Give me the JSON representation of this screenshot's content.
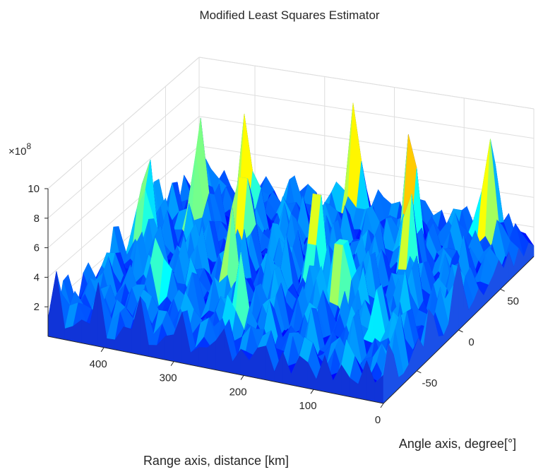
{
  "chart_data": {
    "type": "surface3d",
    "title": "Modified Least Squares Estimator",
    "xlabel": "Range axis, distance [km]",
    "ylabel": "Angle axis, degree[°]",
    "zlabel": "",
    "x_ticks": [
      400,
      300,
      200,
      100,
      0
    ],
    "y_ticks": [
      -50,
      0,
      50
    ],
    "z_ticks": [
      2,
      4,
      6,
      8,
      10
    ],
    "z_multiplier": "×10",
    "z_multiplier_exp": "8",
    "xlim": [
      0,
      480
    ],
    "ylim": [
      -90,
      90
    ],
    "zlim": [
      0,
      10
    ],
    "grid": true,
    "colormap": [
      "#00008f",
      "#0000ff",
      "#0080ff",
      "#00ffff",
      "#80ff80",
      "#ffff00",
      "#ff8000",
      "#ff0000"
    ],
    "peaks": [
      {
        "range": 460,
        "angle": 10,
        "value": 8.6
      },
      {
        "range": 420,
        "angle": 40,
        "value": 9.6
      },
      {
        "range": 370,
        "angle": 55,
        "value": 9.2
      },
      {
        "range": 330,
        "angle": 20,
        "value": 9.0
      },
      {
        "range": 250,
        "angle": 85,
        "value": 9.3
      },
      {
        "range": 210,
        "angle": 5,
        "value": 9.0
      },
      {
        "range": 140,
        "angle": 60,
        "value": 9.7
      },
      {
        "range": 50,
        "angle": 80,
        "value": 9.3
      },
      {
        "range": 150,
        "angle": -15,
        "value": 8.4
      },
      {
        "range": 290,
        "angle": -30,
        "value": 7.6
      },
      {
        "range": 100,
        "angle": 25,
        "value": 8.0
      },
      {
        "range": 240,
        "angle": -60,
        "value": 6.4
      },
      {
        "range": 380,
        "angle": -40,
        "value": 6.2
      },
      {
        "range": 60,
        "angle": -45,
        "value": 6.0
      }
    ]
  }
}
